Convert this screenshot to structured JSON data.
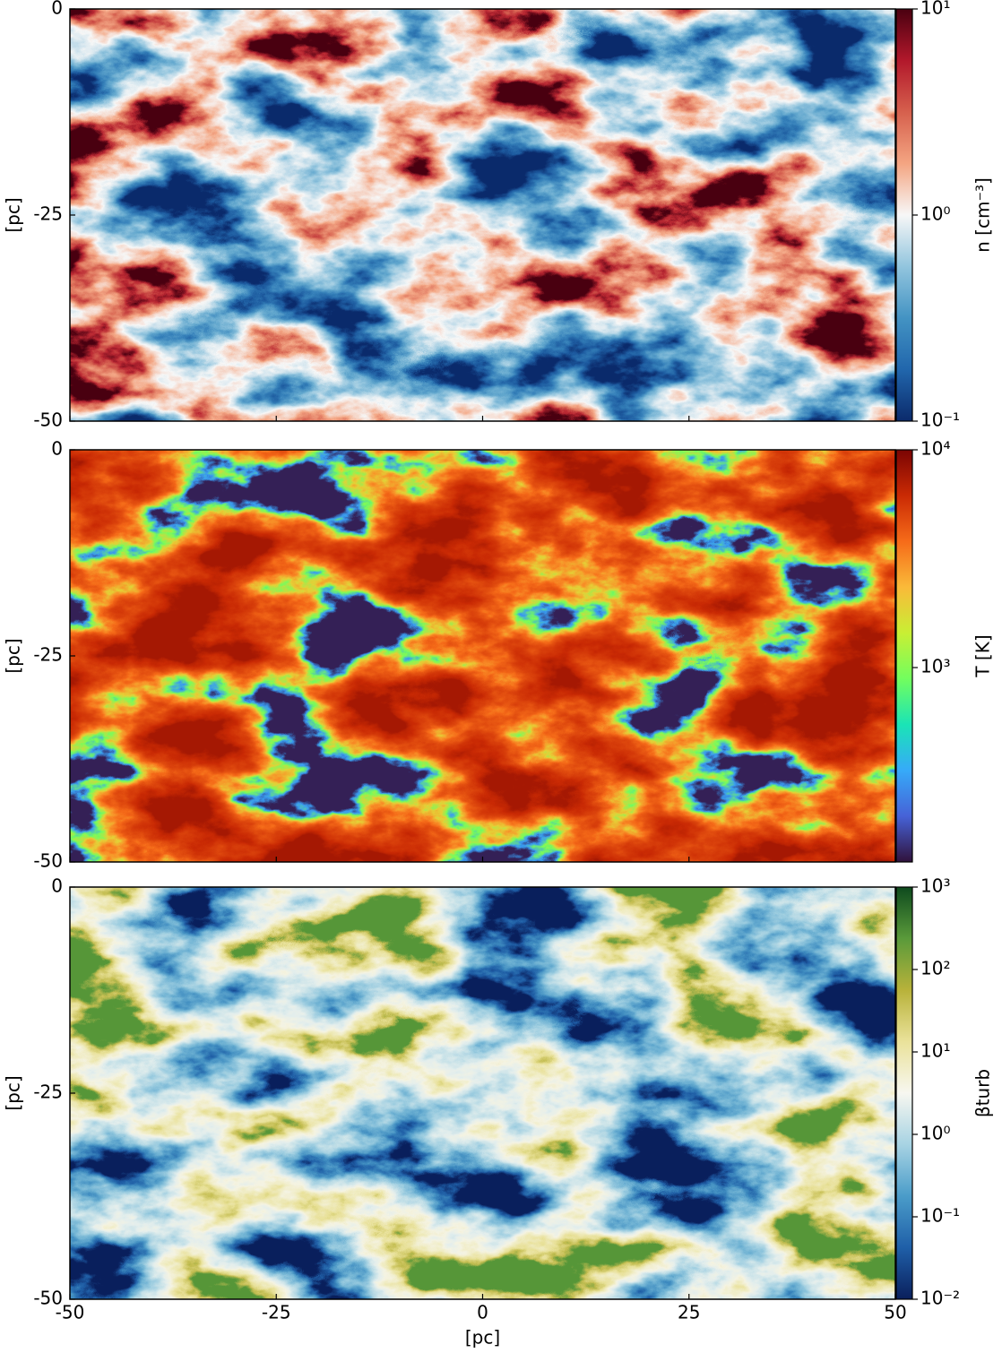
{
  "chart_data": [
    {
      "type": "heatmap",
      "xlim": [
        -50,
        50
      ],
      "ylim": [
        -50,
        0
      ],
      "xticks": [
        -50,
        -25,
        0,
        25,
        50
      ],
      "yticks": [
        0,
        -25,
        -50
      ],
      "ylabel": "[pc]",
      "colorbar": {
        "label": "n [cm⁻³]",
        "scale": "log",
        "lim": [
          0.1,
          10
        ],
        "ticks": [
          {
            "value": 0.1,
            "label": "10⁻¹"
          },
          {
            "value": 1,
            "label": "10⁰"
          },
          {
            "value": 10,
            "label": "10¹"
          }
        ],
        "colormap": [
          "#0b2a6b",
          "#2166ac",
          "#4393c3",
          "#92c5de",
          "#f7f7f7",
          "#f4a582",
          "#d6604d",
          "#b2182b",
          "#4a0010"
        ]
      }
    },
    {
      "type": "heatmap",
      "xlim": [
        -50,
        50
      ],
      "ylim": [
        -50,
        0
      ],
      "xticks": [
        -50,
        -25,
        0,
        25,
        50
      ],
      "yticks": [
        0,
        -25,
        -50
      ],
      "ylabel": "[pc]",
      "colorbar": {
        "label": "T [K]",
        "scale": "log",
        "lim": [
          128,
          10000
        ],
        "ticks": [
          {
            "value": 1000,
            "label": "10³"
          },
          {
            "value": 10000,
            "label": "10⁴"
          }
        ],
        "colormap": [
          "#30123b",
          "#4662d7",
          "#36aaf9",
          "#1ae4b6",
          "#72fe5e",
          "#c8ef34",
          "#faba39",
          "#f66b19",
          "#ca2a04",
          "#7a0403"
        ]
      }
    },
    {
      "type": "heatmap",
      "xlim": [
        -50,
        50
      ],
      "ylim": [
        -50,
        0
      ],
      "xticks": [
        -50,
        -25,
        0,
        25,
        50
      ],
      "yticks": [
        0,
        -25,
        -50
      ],
      "xlabel": "[pc]",
      "ylabel": "[pc]",
      "colorbar": {
        "label": "βturb",
        "scale": "log",
        "lim": [
          0.01,
          1000
        ],
        "ticks": [
          {
            "value": 0.01,
            "label": "10⁻²"
          },
          {
            "value": 0.1,
            "label": "10⁻¹"
          },
          {
            "value": 1,
            "label": "10⁰"
          },
          {
            "value": 10,
            "label": "10¹"
          },
          {
            "value": 100,
            "label": "10²"
          },
          {
            "value": 1000,
            "label": "10³"
          }
        ],
        "colormap": [
          "#0a1f5c",
          "#1f5fa8",
          "#4a9cc9",
          "#a7d3e3",
          "#f7f7f0",
          "#eae29a",
          "#b8b23a",
          "#5a9a3a",
          "#0e4a1e"
        ]
      }
    }
  ]
}
